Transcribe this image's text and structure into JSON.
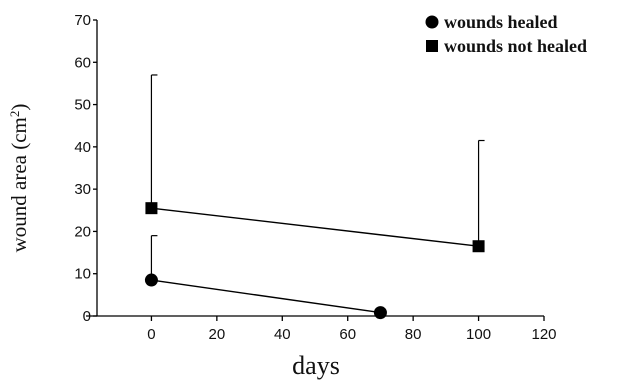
{
  "chart_data": {
    "type": "scatter",
    "xlabel": "days",
    "ylabel": "wound area (cm",
    "ylabel_sup": "2",
    "ylabel_close": ")",
    "xlim": [
      -20,
      120
    ],
    "ylim": [
      0,
      70
    ],
    "xticks": [
      0,
      20,
      40,
      60,
      80,
      100,
      120
    ],
    "yticks": [
      0,
      10,
      20,
      30,
      40,
      50,
      60,
      70
    ],
    "legend_position": "top-right",
    "series": [
      {
        "name": "wounds healed",
        "marker": "circle",
        "x": [
          0,
          70
        ],
        "y": [
          8.5,
          0.8
        ],
        "error_upper": [
          19,
          null
        ]
      },
      {
        "name": "wounds not healed",
        "marker": "square",
        "x": [
          0,
          100
        ],
        "y": [
          25.5,
          16.5
        ],
        "error_upper": [
          57,
          41.5
        ]
      }
    ]
  }
}
